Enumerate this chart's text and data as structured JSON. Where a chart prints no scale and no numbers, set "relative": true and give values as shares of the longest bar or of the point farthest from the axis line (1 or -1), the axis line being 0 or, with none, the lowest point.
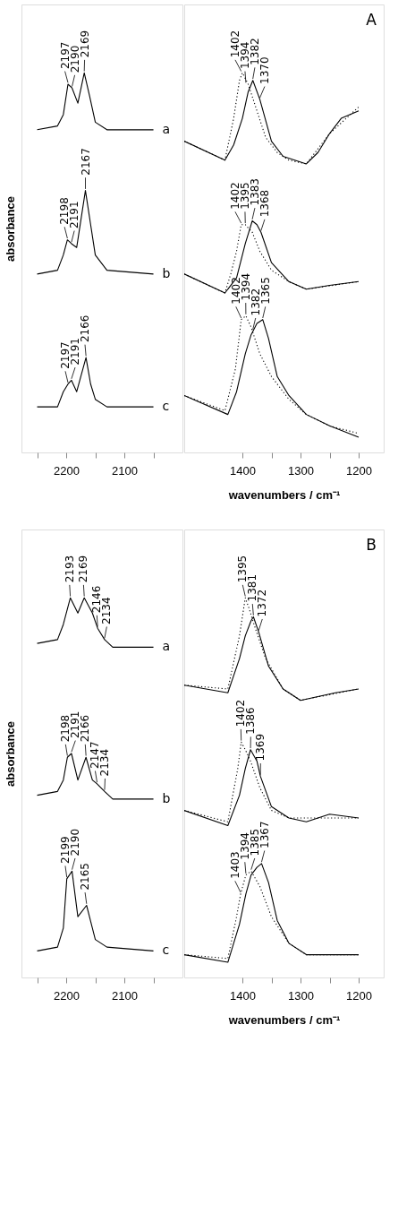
{
  "chart_data": [
    {
      "type": "line",
      "relative": true,
      "ylabel": "absorbance",
      "tick_labels": "x",
      "xlim": [
        2277,
        2000
      ],
      "xticks": [
        {
          "value": 2250,
          "label": null
        },
        2200,
        {
          "value": 2150,
          "label": null
        },
        2100,
        {
          "value": 2050,
          "label": null
        }
      ],
      "series": [
        {
          "name": "a",
          "color": "#000000",
          "x": [
            2250,
            2215,
            2205,
            2197,
            2190,
            2180,
            2169,
            2160,
            2150,
            2130,
            2050
          ],
          "values": [
            0.85,
            0.86,
            0.89,
            0.97,
            0.96,
            0.92,
            1.0,
            0.94,
            0.87,
            0.85,
            0.85
          ]
        },
        {
          "name": "b",
          "color": "#000000",
          "x": [
            2250,
            2215,
            2205,
            2198,
            2191,
            2182,
            2167,
            2158,
            2150,
            2130,
            2050
          ],
          "values": [
            0.47,
            0.48,
            0.52,
            0.56,
            0.55,
            0.54,
            0.69,
            0.6,
            0.52,
            0.48,
            0.47
          ]
        },
        {
          "name": "c",
          "color": "#000000",
          "x": [
            2250,
            2215,
            2205,
            2197,
            2191,
            2182,
            2166,
            2158,
            2150,
            2130,
            2050
          ],
          "values": [
            0.12,
            0.12,
            0.16,
            0.18,
            0.19,
            0.16,
            0.25,
            0.18,
            0.14,
            0.12,
            0.12
          ]
        }
      ],
      "annotations": [
        {
          "text": "2197",
          "x": 2197,
          "y": 0.97
        },
        {
          "text": "2190",
          "x": 2190,
          "y": 0.96
        },
        {
          "text": "2169",
          "x": 2169,
          "y": 1.0
        },
        {
          "text": "2198",
          "x": 2198,
          "y": 0.56
        },
        {
          "text": "2191",
          "x": 2191,
          "y": 0.55
        },
        {
          "text": "2167",
          "x": 2167,
          "y": 0.69
        },
        {
          "text": "2197",
          "x": 2197,
          "y": 0.18
        },
        {
          "text": "2191",
          "x": 2191,
          "y": 0.19
        },
        {
          "text": "2166",
          "x": 2166,
          "y": 0.25
        }
      ]
    },
    {
      "type": "line",
      "relative": true,
      "title": "A",
      "xlabel": "wavenumbers / cm⁻¹",
      "tick_labels": "x",
      "xlim": [
        1500,
        1157
      ],
      "xticks": [
        1400,
        {
          "value": 1350,
          "label": null
        },
        1300,
        {
          "value": 1250,
          "label": null
        },
        1200
      ],
      "series": [
        {
          "color": "#000000",
          "x": [
            1500,
            1430,
            1415,
            1400,
            1390,
            1382,
            1370,
            1350,
            1330,
            1310,
            1290,
            1270,
            1250,
            1230,
            1200
          ],
          "values": [
            0.82,
            0.77,
            0.81,
            0.88,
            0.95,
            0.98,
            0.93,
            0.82,
            0.78,
            0.77,
            0.76,
            0.79,
            0.84,
            0.88,
            0.9
          ]
        },
        {
          "color": "#000000",
          "line_style": "dotted",
          "x": [
            1500,
            1430,
            1415,
            1405,
            1400,
            1390,
            1375,
            1360,
            1340,
            1320,
            1290,
            1250,
            1200
          ],
          "values": [
            0.82,
            0.77,
            0.88,
            0.98,
            1.0,
            0.97,
            0.9,
            0.83,
            0.79,
            0.77,
            0.76,
            0.84,
            0.91
          ]
        },
        {
          "color": "#000000",
          "x": [
            1500,
            1430,
            1410,
            1395,
            1383,
            1375,
            1368,
            1350,
            1320,
            1290,
            1250,
            1200
          ],
          "values": [
            0.47,
            0.42,
            0.46,
            0.55,
            0.61,
            0.6,
            0.58,
            0.5,
            0.45,
            0.43,
            0.44,
            0.45
          ]
        },
        {
          "color": "#000000",
          "line_style": "dotted",
          "x": [
            1500,
            1430,
            1420,
            1410,
            1402,
            1395,
            1383,
            1370,
            1350,
            1320,
            1290,
            1200
          ],
          "values": [
            0.47,
            0.42,
            0.47,
            0.53,
            0.6,
            0.6,
            0.58,
            0.53,
            0.48,
            0.45,
            0.43,
            0.45
          ]
        },
        {
          "color": "#000000",
          "x": [
            1500,
            1425,
            1410,
            1395,
            1385,
            1375,
            1365,
            1355,
            1340,
            1320,
            1290,
            1250,
            1200
          ],
          "values": [
            0.15,
            0.1,
            0.16,
            0.26,
            0.31,
            0.34,
            0.35,
            0.3,
            0.2,
            0.15,
            0.1,
            0.07,
            0.04
          ]
        },
        {
          "color": "#000000",
          "line_style": "dotted",
          "x": [
            1500,
            1430,
            1412,
            1402,
            1394,
            1385,
            1370,
            1350,
            1320,
            1290,
            1250,
            1200
          ],
          "values": [
            0.15,
            0.11,
            0.22,
            0.35,
            0.36,
            0.33,
            0.26,
            0.2,
            0.14,
            0.1,
            0.07,
            0.05
          ]
        }
      ],
      "annotations": [
        {
          "text": "1402",
          "x": 1402,
          "y": 1.0
        },
        {
          "text": "1394",
          "x": 1394,
          "y": 0.97
        },
        {
          "text": "1382",
          "x": 1382,
          "y": 0.98
        },
        {
          "text": "1370",
          "x": 1370,
          "y": 0.93
        },
        {
          "text": "1402",
          "x": 1402,
          "y": 0.6
        },
        {
          "text": "1395",
          "x": 1395,
          "y": 0.6
        },
        {
          "text": "1383",
          "x": 1383,
          "y": 0.61
        },
        {
          "text": "1368",
          "x": 1368,
          "y": 0.58
        },
        {
          "text": "1402",
          "x": 1402,
          "y": 0.35
        },
        {
          "text": "1394",
          "x": 1394,
          "y": 0.36
        },
        {
          "text": "1382",
          "x": 1382,
          "y": 0.32
        },
        {
          "text": "1365",
          "x": 1365,
          "y": 0.35
        }
      ]
    },
    {
      "type": "line",
      "relative": true,
      "ylabel": "absorbance",
      "tick_labels": "x",
      "xlim": [
        2277,
        2000
      ],
      "xticks": [
        {
          "value": 2250,
          "label": null
        },
        2200,
        {
          "value": 2150,
          "label": null
        },
        2100,
        {
          "value": 2050,
          "label": null
        }
      ],
      "series": [
        {
          "name": "a",
          "color": "#000000",
          "x": [
            2250,
            2215,
            2205,
            2193,
            2180,
            2169,
            2155,
            2146,
            2134,
            2120,
            2050
          ],
          "values": [
            0.88,
            0.89,
            0.93,
            1.0,
            0.96,
            1.0,
            0.96,
            0.92,
            0.89,
            0.87,
            0.87
          ]
        },
        {
          "name": "b",
          "color": "#000000",
          "x": [
            2250,
            2215,
            2205,
            2198,
            2191,
            2180,
            2166,
            2155,
            2147,
            2134,
            2120,
            2050
          ],
          "values": [
            0.48,
            0.49,
            0.52,
            0.58,
            0.59,
            0.52,
            0.58,
            0.52,
            0.51,
            0.49,
            0.47,
            0.47
          ]
        },
        {
          "name": "c",
          "color": "#000000",
          "x": [
            2250,
            2215,
            2205,
            2199,
            2190,
            2180,
            2165,
            2150,
            2130,
            2050
          ],
          "values": [
            0.07,
            0.08,
            0.13,
            0.26,
            0.28,
            0.16,
            0.19,
            0.1,
            0.08,
            0.07
          ]
        }
      ],
      "annotations": [
        {
          "text": "2193",
          "x": 2193,
          "y": 1.0
        },
        {
          "text": "2169",
          "x": 2169,
          "y": 1.0
        },
        {
          "text": "2146",
          "x": 2146,
          "y": 0.92
        },
        {
          "text": "2134",
          "x": 2134,
          "y": 0.89
        },
        {
          "text": "2198",
          "x": 2198,
          "y": 0.58
        },
        {
          "text": "2191",
          "x": 2191,
          "y": 0.59
        },
        {
          "text": "2166",
          "x": 2166,
          "y": 0.58
        },
        {
          "text": "2147",
          "x": 2147,
          "y": 0.51
        },
        {
          "text": "2134",
          "x": 2134,
          "y": 0.49
        },
        {
          "text": "2199",
          "x": 2199,
          "y": 0.26
        },
        {
          "text": "2190",
          "x": 2190,
          "y": 0.28
        },
        {
          "text": "2165",
          "x": 2165,
          "y": 0.19
        }
      ]
    },
    {
      "type": "line",
      "relative": true,
      "title": "B",
      "xlabel": "wavenumbers / cm⁻¹",
      "tick_labels": "x",
      "xlim": [
        1500,
        1157
      ],
      "xticks": [
        1400,
        {
          "value": 1350,
          "label": null
        },
        1300,
        {
          "value": 1250,
          "label": null
        },
        1200
      ],
      "series": [
        {
          "color": "#000000",
          "x": [
            1500,
            1425,
            1405,
            1395,
            1385,
            1381,
            1372,
            1355,
            1330,
            1300,
            1270,
            1240,
            1200
          ],
          "values": [
            0.77,
            0.75,
            0.84,
            0.9,
            0.94,
            0.95,
            0.91,
            0.82,
            0.76,
            0.73,
            0.74,
            0.75,
            0.76
          ]
        },
        {
          "color": "#000000",
          "line_style": "dotted",
          "x": [
            1500,
            1425,
            1405,
            1395,
            1388,
            1380,
            1360,
            1330,
            1300,
            1200
          ],
          "values": [
            0.77,
            0.76,
            0.9,
            1.0,
            0.97,
            0.93,
            0.84,
            0.76,
            0.73,
            0.76
          ]
        },
        {
          "color": "#000000",
          "x": [
            1500,
            1425,
            1405,
            1395,
            1386,
            1375,
            1369,
            1350,
            1320,
            1290,
            1250,
            1200
          ],
          "values": [
            0.44,
            0.4,
            0.48,
            0.55,
            0.6,
            0.57,
            0.53,
            0.45,
            0.42,
            0.41,
            0.43,
            0.42
          ]
        },
        {
          "color": "#000000",
          "line_style": "dotted",
          "x": [
            1500,
            1425,
            1408,
            1402,
            1395,
            1386,
            1370,
            1350,
            1320,
            1200
          ],
          "values": [
            0.44,
            0.41,
            0.55,
            0.62,
            0.6,
            0.57,
            0.5,
            0.44,
            0.42,
            0.42
          ]
        },
        {
          "color": "#000000",
          "x": [
            1500,
            1425,
            1405,
            1394,
            1385,
            1375,
            1367,
            1355,
            1340,
            1320,
            1290,
            1200
          ],
          "values": [
            0.06,
            0.04,
            0.14,
            0.22,
            0.27,
            0.29,
            0.3,
            0.25,
            0.15,
            0.09,
            0.06,
            0.06
          ]
        },
        {
          "color": "#000000",
          "line_style": "dotted",
          "x": [
            1500,
            1425,
            1410,
            1403,
            1394,
            1385,
            1370,
            1350,
            1320,
            1290,
            1200
          ],
          "values": [
            0.06,
            0.05,
            0.16,
            0.22,
            0.27,
            0.28,
            0.24,
            0.16,
            0.09,
            0.06,
            0.06
          ]
        }
      ],
      "annotations": [
        {
          "text": "1395",
          "x": 1395,
          "y": 1.0
        },
        {
          "text": "1381",
          "x": 1381,
          "y": 0.95
        },
        {
          "text": "1372",
          "x": 1372,
          "y": 0.91
        },
        {
          "text": "1402",
          "x": 1402,
          "y": 0.62
        },
        {
          "text": "1386",
          "x": 1386,
          "y": 0.6
        },
        {
          "text": "1369",
          "x": 1369,
          "y": 0.53
        },
        {
          "text": "1403",
          "x": 1403,
          "y": 0.22
        },
        {
          "text": "1394",
          "x": 1394,
          "y": 0.27
        },
        {
          "text": "1385",
          "x": 1385,
          "y": 0.28
        },
        {
          "text": "1367",
          "x": 1367,
          "y": 0.3
        }
      ]
    }
  ]
}
